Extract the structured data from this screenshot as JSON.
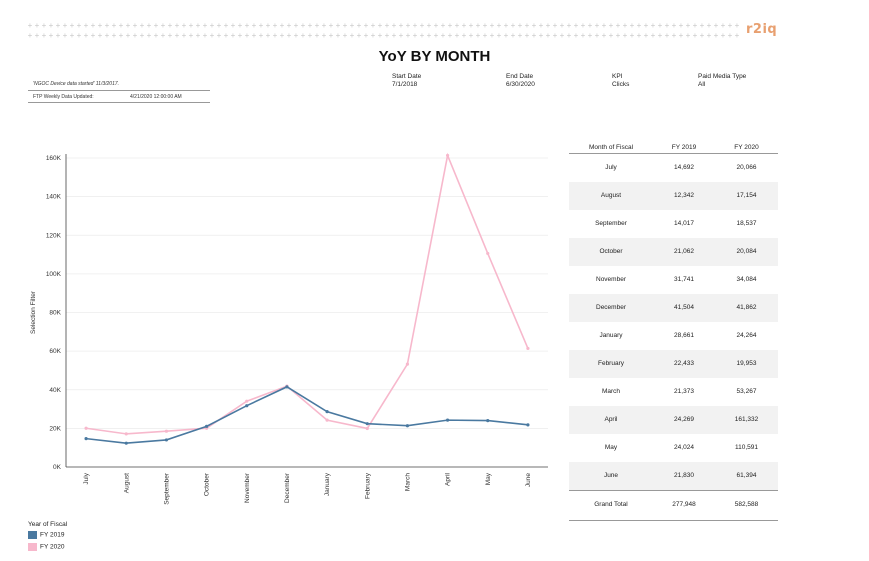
{
  "header": {
    "title": "YoY BY MONTH",
    "brand": "r2iq",
    "note": "'NGOC Device data started' 11/3/2017.",
    "updated_label": "FTP Weekly Data Updated:",
    "updated_value": "4/21/2020 12:00:00 AM"
  },
  "filters": {
    "start_label": "Start Date",
    "start_value": "7/1/2018",
    "end_label": "End Date",
    "end_value": "6/30/2020",
    "kpi_label": "KPI",
    "kpi_value": "Clicks",
    "media_label": "Paid Media Type",
    "media_value": "All"
  },
  "colors": {
    "fy2019": "#4a79a0",
    "fy2020": "#f7b8cc",
    "grid": "#ececec"
  },
  "chart_data": {
    "type": "line",
    "categories": [
      "July",
      "August",
      "September",
      "October",
      "November",
      "December",
      "January",
      "February",
      "March",
      "April",
      "May",
      "June"
    ],
    "series": [
      {
        "name": "FY 2019",
        "values": [
          14692,
          12342,
          14017,
          21062,
          31741,
          41504,
          28661,
          22433,
          21373,
          24269,
          24024,
          21830
        ]
      },
      {
        "name": "FY 2020",
        "values": [
          20066,
          17154,
          18537,
          20084,
          34084,
          41862,
          24264,
          19953,
          53267,
          161332,
          110591,
          61394
        ]
      }
    ],
    "ylabel": "Selection Filter",
    "ylim": [
      0,
      160000
    ],
    "yticks": [
      0,
      20000,
      40000,
      60000,
      80000,
      100000,
      120000,
      140000,
      160000
    ],
    "ytick_labels": [
      "0K",
      "20K",
      "40K",
      "60K",
      "80K",
      "100K",
      "120K",
      "140K",
      "160K"
    ],
    "grid": true,
    "legend": {
      "title": "Year of Fiscal",
      "position": "bottom-left"
    }
  },
  "table": {
    "headers": [
      "Month of Fiscal",
      "FY 2019",
      "FY 2020"
    ],
    "rows": [
      [
        "July",
        "14,692",
        "20,066"
      ],
      [
        "August",
        "12,342",
        "17,154"
      ],
      [
        "September",
        "14,017",
        "18,537"
      ],
      [
        "October",
        "21,062",
        "20,084"
      ],
      [
        "November",
        "31,741",
        "34,084"
      ],
      [
        "December",
        "41,504",
        "41,862"
      ],
      [
        "January",
        "28,661",
        "24,264"
      ],
      [
        "February",
        "22,433",
        "19,953"
      ],
      [
        "March",
        "21,373",
        "53,267"
      ],
      [
        "April",
        "24,269",
        "161,332"
      ],
      [
        "May",
        "24,024",
        "110,591"
      ],
      [
        "June",
        "21,830",
        "61,394"
      ]
    ],
    "total": [
      "Grand Total",
      "277,948",
      "582,588"
    ]
  }
}
